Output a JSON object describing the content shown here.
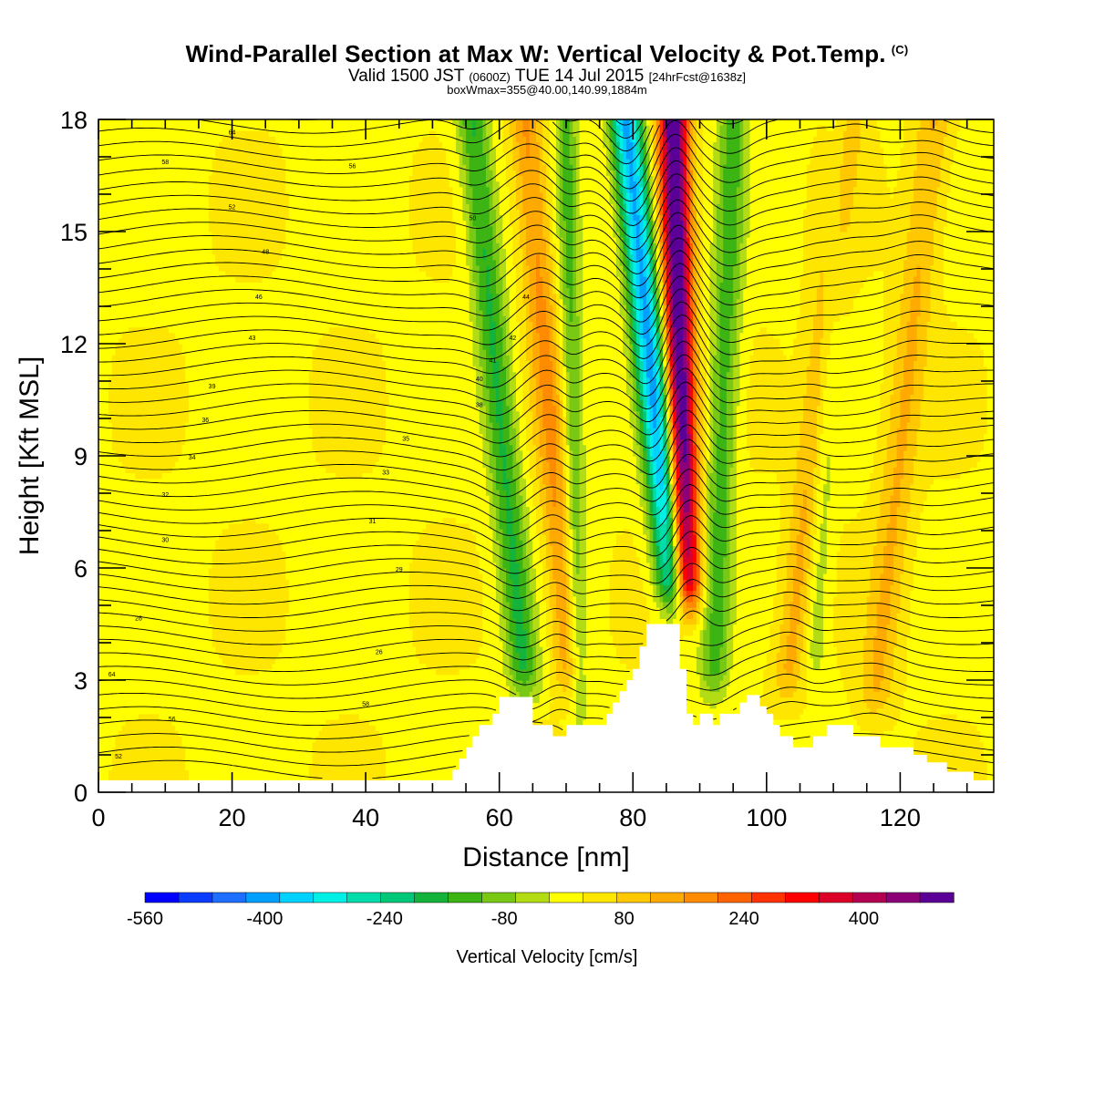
{
  "header": {
    "title": "Wind-Parallel Section at Max W: Vertical Velocity & Pot.Temp.",
    "title_tag": "(C)",
    "subtitle_main": "Valid 1500 JST",
    "subtitle_zulu": "(0600Z)",
    "subtitle_date": "TUE 14 Jul 2015",
    "subtitle_fcst": "[24hrFcst@1638z]",
    "subtitle2": "boxWmax=355@40.00,140.99,1884m"
  },
  "chart_data": {
    "type": "heatmap",
    "xlabel": "Distance [nm]",
    "ylabel": "Height [Kft MSL]",
    "xlim": [
      0,
      134
    ],
    "ylim": [
      0,
      18
    ],
    "xticks": [
      0,
      20,
      40,
      60,
      80,
      100,
      120
    ],
    "yticks": [
      0,
      3,
      6,
      9,
      12,
      15,
      18
    ],
    "colorbar": {
      "label": "Vertical Velocity [cm/s]",
      "ticks": [
        -560,
        -400,
        -240,
        -80,
        80,
        240,
        400
      ],
      "min": -560,
      "max": 520,
      "colors": [
        "#0000ff",
        "#0a3cff",
        "#1e6eff",
        "#00a0ff",
        "#00d2ff",
        "#00f0e6",
        "#00dcaa",
        "#00c878",
        "#14b43c",
        "#3cb414",
        "#78c814",
        "#b4dc14",
        "#ffff00",
        "#ffe600",
        "#ffc800",
        "#ffaa00",
        "#ff8c00",
        "#ff6400",
        "#ff3200",
        "#ff0000",
        "#dc0028",
        "#b40050",
        "#8c0078",
        "#5a0096"
      ]
    },
    "terrain_kft": [
      [
        0,
        0.32
      ],
      [
        52,
        0.32
      ],
      [
        53,
        0.6
      ],
      [
        54,
        0.9
      ],
      [
        55,
        1.2
      ],
      [
        56,
        1.5
      ],
      [
        57,
        1.8
      ],
      [
        59,
        2.1
      ],
      [
        60,
        2.55
      ],
      [
        64,
        2.55
      ],
      [
        65,
        1.8
      ],
      [
        68,
        1.5
      ],
      [
        70,
        1.8
      ],
      [
        75,
        1.8
      ],
      [
        76,
        2.1
      ],
      [
        77,
        2.4
      ],
      [
        78,
        2.7
      ],
      [
        79,
        3.0
      ],
      [
        80,
        3.3
      ],
      [
        81,
        3.9
      ],
      [
        82,
        4.5
      ],
      [
        86,
        4.5
      ],
      [
        87,
        3.3
      ],
      [
        88,
        2.1
      ],
      [
        89,
        1.8
      ],
      [
        90,
        2.1
      ],
      [
        92,
        1.8
      ],
      [
        93,
        2.1
      ],
      [
        95,
        2.1
      ],
      [
        96,
        2.4
      ],
      [
        97,
        2.6
      ],
      [
        98,
        2.6
      ],
      [
        99,
        2.3
      ],
      [
        100,
        2.1
      ],
      [
        101,
        1.8
      ],
      [
        102,
        1.5
      ],
      [
        103,
        1.5
      ],
      [
        104,
        1.2
      ],
      [
        106,
        1.2
      ],
      [
        107,
        1.5
      ],
      [
        109,
        1.8
      ],
      [
        112,
        1.8
      ],
      [
        113,
        1.5
      ],
      [
        116,
        1.5
      ],
      [
        117,
        1.2
      ],
      [
        121,
        1.2
      ],
      [
        122,
        1.0
      ],
      [
        124,
        0.8
      ],
      [
        126,
        0.8
      ],
      [
        127,
        0.55
      ],
      [
        130,
        0.55
      ],
      [
        131,
        0.32
      ],
      [
        134,
        0.32
      ]
    ],
    "features": [
      {
        "kind": "updraft",
        "x_bottom": 88,
        "x_top": 86,
        "z_bottom": 4.8,
        "z_top": 18,
        "peak": 520,
        "width_nm": 2.2
      },
      {
        "kind": "downdraft",
        "x_bottom": 86.5,
        "x_top": 79,
        "z_bottom": 4.8,
        "z_top": 18,
        "peak": -420,
        "width_nm": 2.4
      },
      {
        "kind": "downdraft",
        "x_bottom": 64,
        "x_top": 56,
        "z_bottom": 2.5,
        "z_top": 18,
        "peak": -180,
        "width_nm": 2.4
      },
      {
        "kind": "updraft",
        "x_bottom": 71,
        "x_top": 64,
        "z_bottom": 2.5,
        "z_top": 18,
        "peak": 150,
        "width_nm": 2.4
      },
      {
        "kind": "downdraft",
        "x_bottom": 92,
        "x_top": 95,
        "z_bottom": 2.5,
        "z_top": 18,
        "peak": -150,
        "width_nm": 2.2
      },
      {
        "kind": "downdraft",
        "x_bottom": 72,
        "x_top": 70,
        "z_bottom": 2.0,
        "z_top": 18,
        "peak": -140,
        "width_nm": 1.6
      },
      {
        "kind": "updraft",
        "x_bottom": 103,
        "x_top": 112,
        "z_bottom": 2.5,
        "z_top": 18,
        "peak": 110,
        "width_nm": 2.4
      },
      {
        "kind": "downdraft",
        "x_bottom": 107,
        "x_top": 111,
        "z_bottom": 3.0,
        "z_top": 18,
        "peak": -80,
        "width_nm": 1.8
      },
      {
        "kind": "updraft",
        "x_bottom": 116,
        "x_top": 125,
        "z_bottom": 2.0,
        "z_top": 18,
        "peak": 100,
        "width_nm": 2.6
      }
    ],
    "contour_labels": [
      "64",
      "58",
      "56",
      "52",
      "50",
      "48",
      "46",
      "44",
      "43",
      "42",
      "41",
      "40",
      "39",
      "38",
      "36",
      "35",
      "34",
      "33",
      "32",
      "31",
      "30",
      "29",
      "28",
      "26"
    ]
  }
}
